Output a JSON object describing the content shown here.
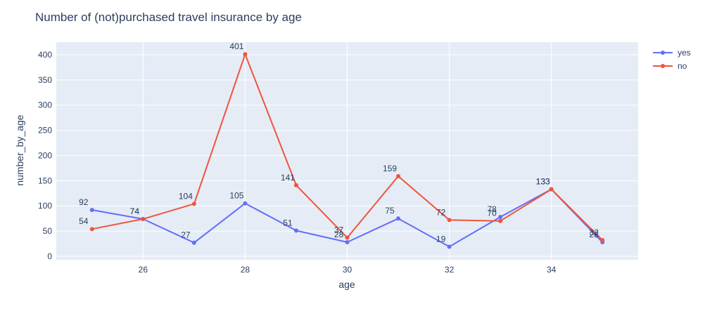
{
  "chart_data": {
    "type": "line",
    "title": "Number of (not)purchased travel insurance by age",
    "xlabel": "age",
    "ylabel": "number_by_age",
    "x": [
      25,
      26,
      27,
      28,
      29,
      30,
      31,
      32,
      33,
      34,
      35
    ],
    "xlim": [
      24.3,
      35.7
    ],
    "ylim": [
      -7,
      425
    ],
    "xticks": [
      26,
      28,
      30,
      32,
      34
    ],
    "yticks": [
      0,
      50,
      100,
      150,
      200,
      250,
      300,
      350,
      400
    ],
    "grid": true,
    "legend_position": "top-right",
    "series": [
      {
        "name": "yes",
        "color": "#636efa",
        "values": [
          92,
          74,
          27,
          105,
          51,
          28,
          75,
          19,
          78,
          133,
          28
        ]
      },
      {
        "name": "no",
        "color": "#ef553b",
        "values": [
          54,
          74,
          104,
          401,
          141,
          37,
          159,
          72,
          70,
          133,
          32
        ]
      }
    ]
  }
}
